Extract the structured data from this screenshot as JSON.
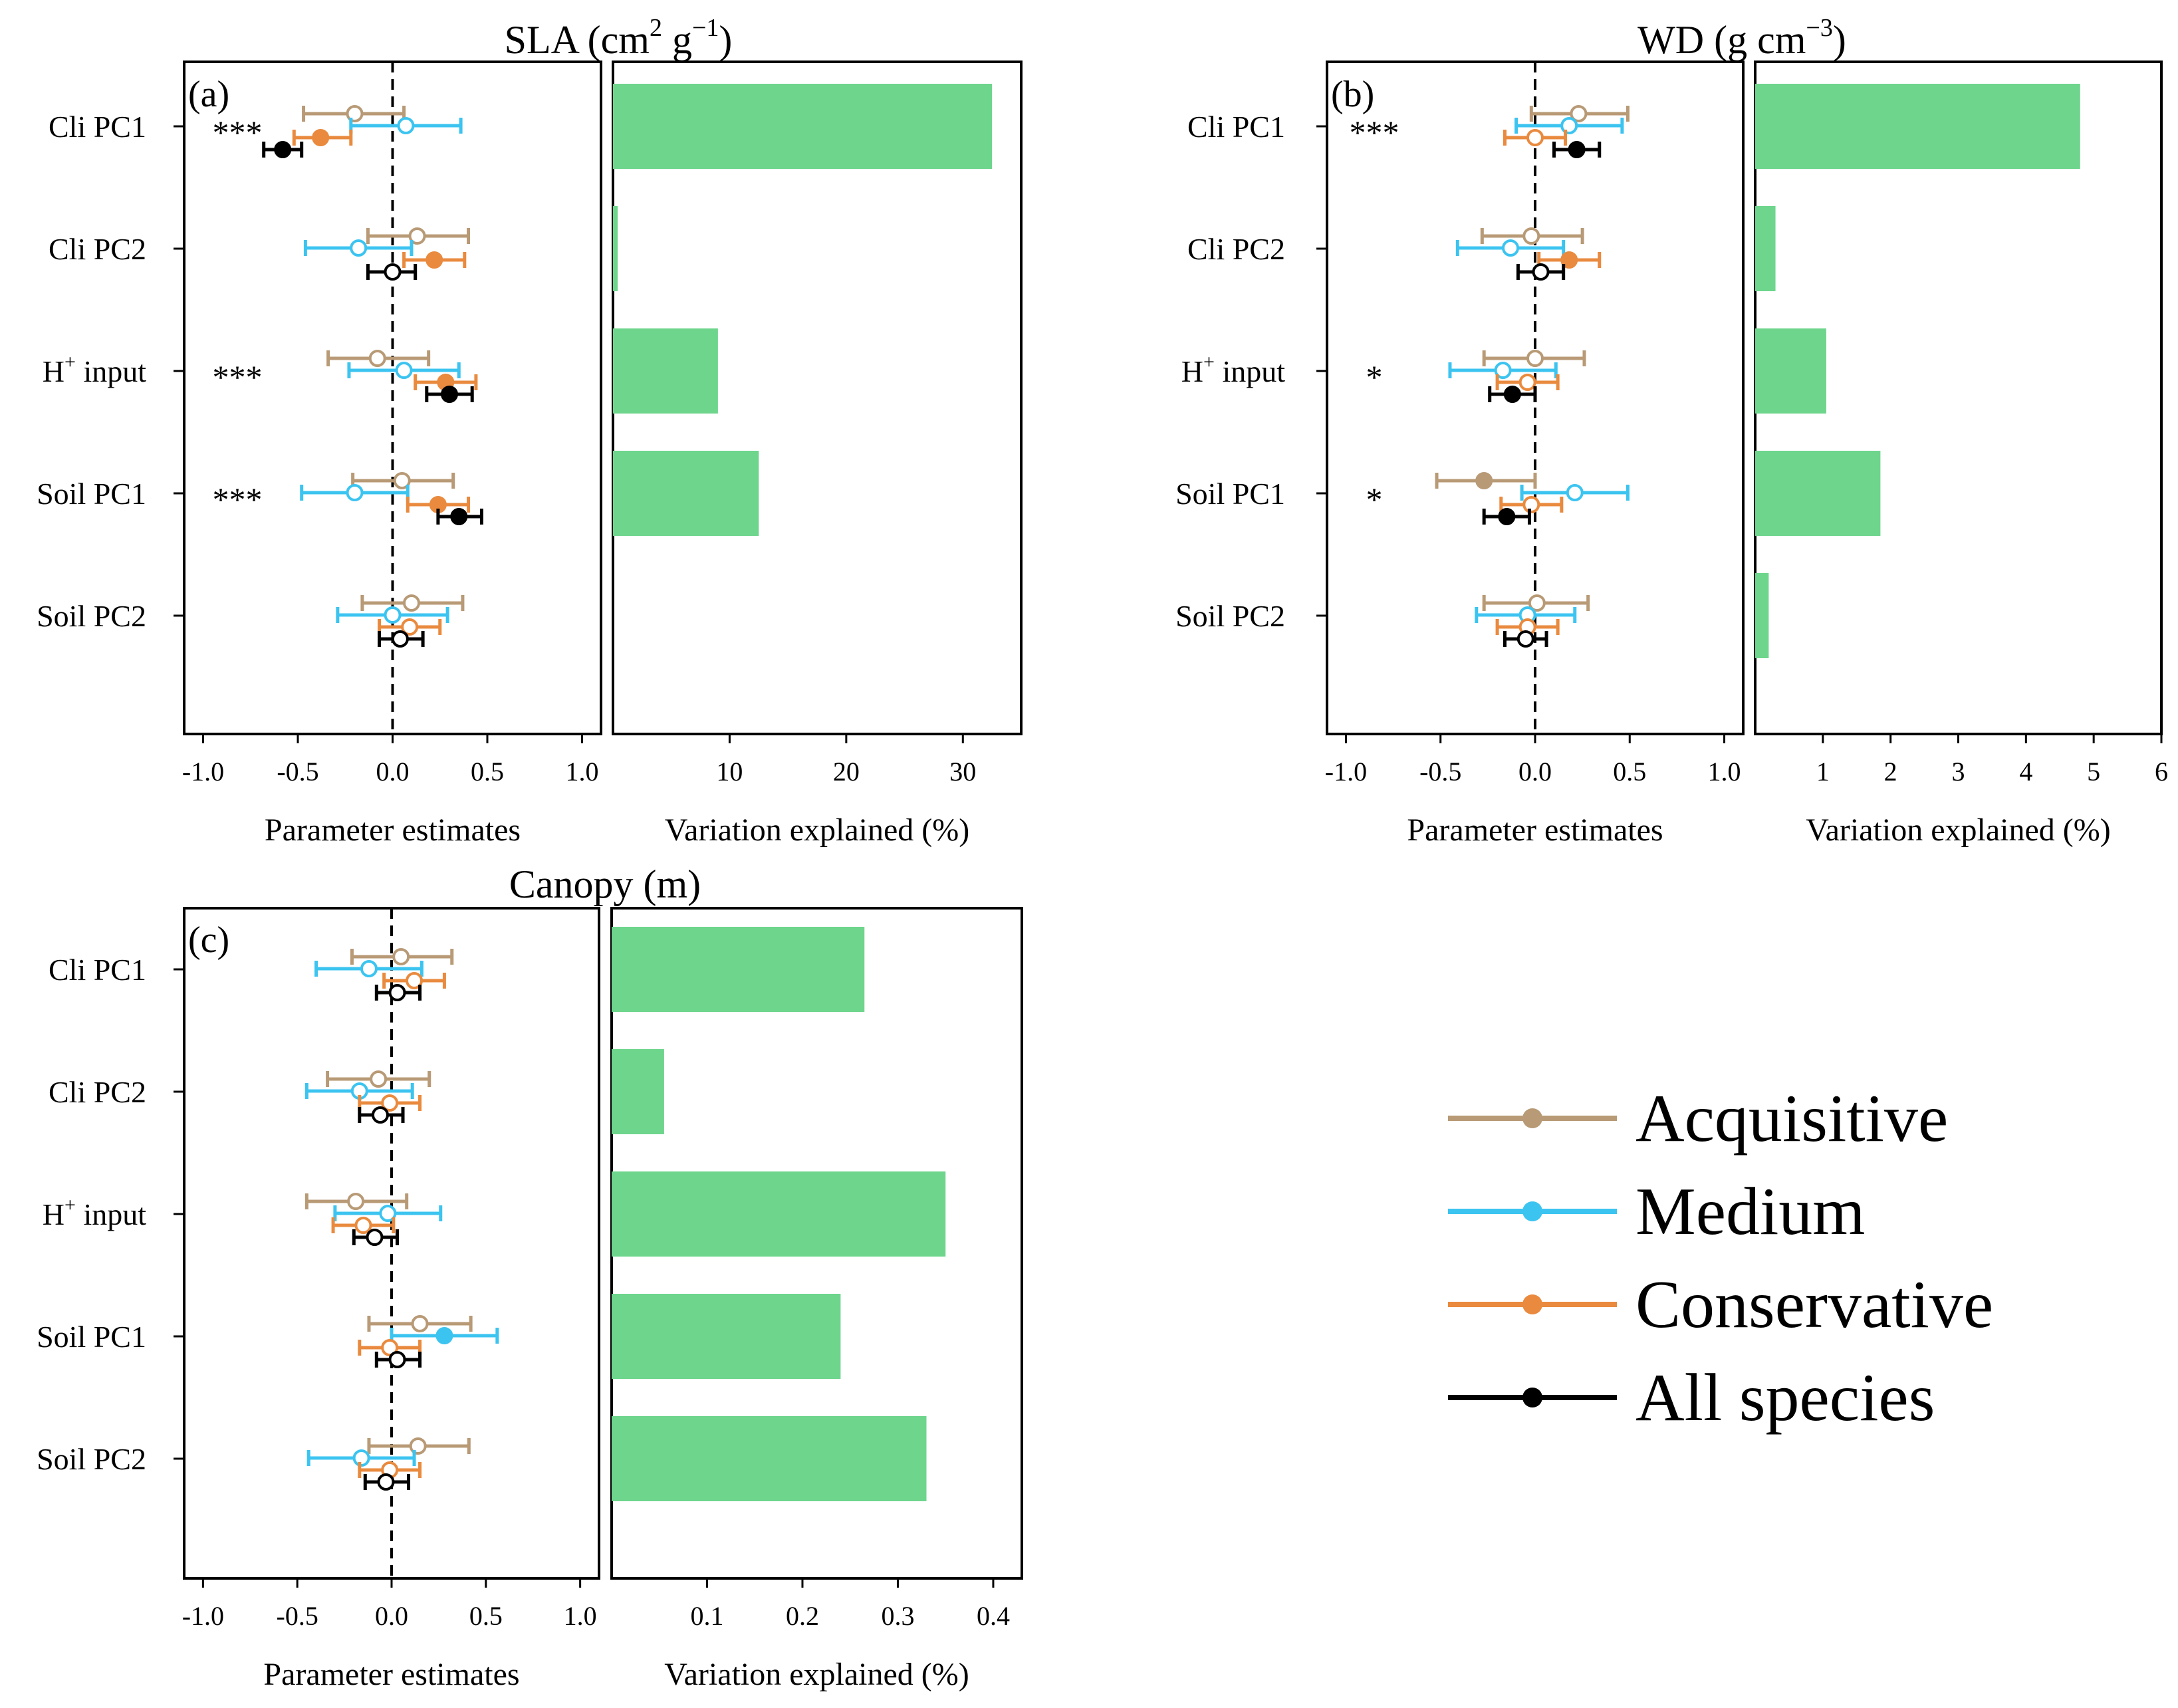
{
  "figure": {
    "legend": {
      "items": [
        {
          "label": "Acquisitive",
          "color": "#b89a76"
        },
        {
          "label": "Medium",
          "color": "#3cc4f0"
        },
        {
          "label": "Conservative",
          "color": "#e98a3e"
        },
        {
          "label": "All species",
          "color": "#000000"
        }
      ]
    }
  },
  "chart_data": [
    {
      "id": "a",
      "type": "forest-plot-with-bar",
      "panel_label": "(a)",
      "title_main": "SLA (cm",
      "title_sup1": "2",
      "title_mid": " g",
      "title_sup2": "−1",
      "title_end": ")",
      "xlabel_left": "Parameter estimates",
      "xlabel_right": "Variation explained (%)",
      "xlim_left": [
        -1.1,
        1.1
      ],
      "xticks_left": [
        "-1.0",
        "-0.5",
        "0.0",
        "0.5",
        "1.0"
      ],
      "xlim_right": [
        0,
        35
      ],
      "xticks_right": [
        "10",
        "20",
        "30"
      ],
      "xtick_values_right": [
        10,
        20,
        30
      ],
      "predictors": [
        {
          "label": "Cli PC1",
          "sup": "",
          "label_rest": "",
          "stars": "***",
          "variation": 32.5,
          "estimates": [
            {
              "group": "Acquisitive",
              "est": -0.2,
              "lo": -0.47,
              "hi": 0.06,
              "filled": false
            },
            {
              "group": "Medium",
              "est": 0.07,
              "lo": -0.22,
              "hi": 0.36,
              "filled": false
            },
            {
              "group": "Conservative",
              "est": -0.38,
              "lo": -0.52,
              "hi": -0.22,
              "filled": true
            },
            {
              "group": "All species",
              "est": -0.58,
              "lo": -0.68,
              "hi": -0.48,
              "filled": true
            }
          ]
        },
        {
          "label": "Cli PC2",
          "sup": "",
          "label_rest": "",
          "stars": "",
          "variation": 0.4,
          "estimates": [
            {
              "group": "Acquisitive",
              "est": 0.13,
              "lo": -0.13,
              "hi": 0.4,
              "filled": false
            },
            {
              "group": "Medium",
              "est": -0.18,
              "lo": -0.46,
              "hi": 0.1,
              "filled": false
            },
            {
              "group": "Conservative",
              "est": 0.22,
              "lo": 0.06,
              "hi": 0.38,
              "filled": true
            },
            {
              "group": "All species",
              "est": 0.0,
              "lo": -0.13,
              "hi": 0.12,
              "filled": false
            }
          ]
        },
        {
          "label": "H",
          "sup": "+",
          "label_rest": " input",
          "stars": "***",
          "variation": 9.0,
          "estimates": [
            {
              "group": "Acquisitive",
              "est": -0.08,
              "lo": -0.34,
              "hi": 0.19,
              "filled": false
            },
            {
              "group": "Medium",
              "est": 0.06,
              "lo": -0.23,
              "hi": 0.35,
              "filled": false
            },
            {
              "group": "Conservative",
              "est": 0.28,
              "lo": 0.12,
              "hi": 0.44,
              "filled": true
            },
            {
              "group": "All species",
              "est": 0.3,
              "lo": 0.18,
              "hi": 0.42,
              "filled": true
            }
          ]
        },
        {
          "label": "Soil PC1",
          "sup": "",
          "label_rest": "",
          "stars": "***",
          "variation": 12.5,
          "estimates": [
            {
              "group": "Acquisitive",
              "est": 0.05,
              "lo": -0.21,
              "hi": 0.32,
              "filled": false
            },
            {
              "group": "Medium",
              "est": -0.2,
              "lo": -0.48,
              "hi": 0.08,
              "filled": false
            },
            {
              "group": "Conservative",
              "est": 0.24,
              "lo": 0.08,
              "hi": 0.4,
              "filled": true
            },
            {
              "group": "All species",
              "est": 0.35,
              "lo": 0.24,
              "hi": 0.47,
              "filled": true
            }
          ]
        },
        {
          "label": "Soil PC2",
          "sup": "",
          "label_rest": "",
          "stars": "",
          "variation": 0.0,
          "estimates": [
            {
              "group": "Acquisitive",
              "est": 0.1,
              "lo": -0.16,
              "hi": 0.37,
              "filled": false
            },
            {
              "group": "Medium",
              "est": 0.0,
              "lo": -0.29,
              "hi": 0.29,
              "filled": false
            },
            {
              "group": "Conservative",
              "est": 0.09,
              "lo": -0.07,
              "hi": 0.25,
              "filled": false
            },
            {
              "group": "All species",
              "est": 0.04,
              "lo": -0.07,
              "hi": 0.16,
              "filled": false
            }
          ]
        }
      ]
    },
    {
      "id": "b",
      "type": "forest-plot-with-bar",
      "panel_label": "(b)",
      "title_main": "WD (g cm",
      "title_sup1": "−3",
      "title_mid": "",
      "title_sup2": "",
      "title_end": ")",
      "xlabel_left": "Parameter estimates",
      "xlabel_right": "Variation explained (%)",
      "xlim_left": [
        -1.1,
        1.1
      ],
      "xticks_left": [
        "-1.0",
        "-0.5",
        "0.0",
        "0.5",
        "1.0"
      ],
      "xlim_right": [
        0,
        6
      ],
      "xticks_right": [
        "1",
        "2",
        "3",
        "4",
        "5",
        "6"
      ],
      "xtick_values_right": [
        1,
        2,
        3,
        4,
        5,
        6
      ],
      "predictors": [
        {
          "label": "Cli PC1",
          "sup": "",
          "label_rest": "",
          "stars": "***",
          "variation": 4.8,
          "estimates": [
            {
              "group": "Acquisitive",
              "est": 0.23,
              "lo": -0.02,
              "hi": 0.49,
              "filled": false
            },
            {
              "group": "Medium",
              "est": 0.18,
              "lo": -0.1,
              "hi": 0.46,
              "filled": false
            },
            {
              "group": "Conservative",
              "est": 0.0,
              "lo": -0.16,
              "hi": 0.16,
              "filled": false
            },
            {
              "group": "All species",
              "est": 0.22,
              "lo": 0.1,
              "hi": 0.34,
              "filled": true
            }
          ]
        },
        {
          "label": "Cli PC2",
          "sup": "",
          "label_rest": "",
          "stars": "",
          "variation": 0.3,
          "estimates": [
            {
              "group": "Acquisitive",
              "est": -0.02,
              "lo": -0.28,
              "hi": 0.25,
              "filled": false
            },
            {
              "group": "Medium",
              "est": -0.13,
              "lo": -0.41,
              "hi": 0.15,
              "filled": false
            },
            {
              "group": "Conservative",
              "est": 0.18,
              "lo": 0.02,
              "hi": 0.34,
              "filled": true
            },
            {
              "group": "All species",
              "est": 0.03,
              "lo": -0.09,
              "hi": 0.15,
              "filled": false
            }
          ]
        },
        {
          "label": "H",
          "sup": "+",
          "label_rest": " input",
          "stars": "*",
          "variation": 1.05,
          "estimates": [
            {
              "group": "Acquisitive",
              "est": 0.0,
              "lo": -0.27,
              "hi": 0.26,
              "filled": false
            },
            {
              "group": "Medium",
              "est": -0.17,
              "lo": -0.45,
              "hi": 0.11,
              "filled": false
            },
            {
              "group": "Conservative",
              "est": -0.04,
              "lo": -0.2,
              "hi": 0.12,
              "filled": false
            },
            {
              "group": "All species",
              "est": -0.12,
              "lo": -0.24,
              "hi": 0.0,
              "filled": true
            }
          ]
        },
        {
          "label": "Soil  PC1",
          "sup": "",
          "label_rest": "",
          "stars": "*",
          "variation": 1.85,
          "estimates": [
            {
              "group": "Acquisitive",
              "est": -0.27,
              "lo": -0.52,
              "hi": 0.0,
              "filled": true
            },
            {
              "group": "Medium",
              "est": 0.21,
              "lo": -0.07,
              "hi": 0.49,
              "filled": false
            },
            {
              "group": "Conservative",
              "est": -0.02,
              "lo": -0.18,
              "hi": 0.14,
              "filled": false
            },
            {
              "group": "All species",
              "est": -0.15,
              "lo": -0.27,
              "hi": -0.03,
              "filled": true
            }
          ]
        },
        {
          "label": "Soil PC2",
          "sup": "",
          "label_rest": "",
          "stars": "",
          "variation": 0.2,
          "estimates": [
            {
              "group": "Acquisitive",
              "est": 0.01,
              "lo": -0.27,
              "hi": 0.28,
              "filled": false
            },
            {
              "group": "Medium",
              "est": -0.04,
              "lo": -0.31,
              "hi": 0.21,
              "filled": false
            },
            {
              "group": "Conservative",
              "est": -0.04,
              "lo": -0.2,
              "hi": 0.12,
              "filled": false
            },
            {
              "group": "All species",
              "est": -0.05,
              "lo": -0.16,
              "hi": 0.06,
              "filled": false
            }
          ]
        }
      ]
    },
    {
      "id": "c",
      "type": "forest-plot-with-bar",
      "panel_label": "(c)",
      "title_main": "Canopy (m)",
      "title_sup1": "",
      "title_mid": "",
      "title_sup2": "",
      "title_end": "",
      "xlabel_left": "Parameter estimates",
      "xlabel_right": "Variation explained (%)",
      "xlim_left": [
        -1.1,
        1.1
      ],
      "xticks_left": [
        "-1.0",
        "-0.5",
        "0.0",
        "0.5",
        "1.0"
      ],
      "xlim_right": [
        0,
        0.43
      ],
      "xticks_right": [
        "0.1",
        "0.2",
        "0.3",
        "0.4"
      ],
      "xtick_values_right": [
        0.1,
        0.2,
        0.3,
        0.4
      ],
      "predictors": [
        {
          "label": "Cli PC1",
          "sup": "",
          "label_rest": "",
          "stars": "",
          "variation": 0.265,
          "estimates": [
            {
              "group": "Acquisitive",
              "est": 0.05,
              "lo": -0.21,
              "hi": 0.32,
              "filled": false
            },
            {
              "group": "Medium",
              "est": -0.12,
              "lo": -0.4,
              "hi": 0.16,
              "filled": false
            },
            {
              "group": "Conservative",
              "est": 0.12,
              "lo": -0.04,
              "hi": 0.28,
              "filled": false
            },
            {
              "group": "All species",
              "est": 0.03,
              "lo": -0.08,
              "hi": 0.15,
              "filled": false
            }
          ]
        },
        {
          "label": "Cli PC2",
          "sup": "",
          "label_rest": "",
          "stars": "",
          "variation": 0.055,
          "estimates": [
            {
              "group": "Acquisitive",
              "est": -0.07,
              "lo": -0.34,
              "hi": 0.2,
              "filled": false
            },
            {
              "group": "Medium",
              "est": -0.17,
              "lo": -0.45,
              "hi": 0.11,
              "filled": false
            },
            {
              "group": "Conservative",
              "est": -0.01,
              "lo": -0.17,
              "hi": 0.15,
              "filled": false
            },
            {
              "group": "All species",
              "est": -0.06,
              "lo": -0.17,
              "hi": 0.06,
              "filled": false
            }
          ]
        },
        {
          "label": "H",
          "sup": "+",
          "label_rest": " input",
          "stars": "",
          "variation": 0.35,
          "estimates": [
            {
              "group": "Acquisitive",
              "est": -0.19,
              "lo": -0.45,
              "hi": 0.08,
              "filled": false
            },
            {
              "group": "Medium",
              "est": -0.02,
              "lo": -0.3,
              "hi": 0.26,
              "filled": false
            },
            {
              "group": "Conservative",
              "est": -0.15,
              "lo": -0.31,
              "hi": 0.01,
              "filled": false
            },
            {
              "group": "All species",
              "est": -0.09,
              "lo": -0.2,
              "hi": 0.03,
              "filled": false
            }
          ]
        },
        {
          "label": "Soil PC1",
          "sup": "",
          "label_rest": "",
          "stars": "",
          "variation": 0.24,
          "estimates": [
            {
              "group": "Acquisitive",
              "est": 0.15,
              "lo": -0.12,
              "hi": 0.42,
              "filled": false
            },
            {
              "group": "Medium",
              "est": 0.28,
              "lo": 0.0,
              "hi": 0.56,
              "filled": true
            },
            {
              "group": "Conservative",
              "est": -0.01,
              "lo": -0.17,
              "hi": 0.15,
              "filled": false
            },
            {
              "group": "All species",
              "est": 0.03,
              "lo": -0.08,
              "hi": 0.15,
              "filled": false
            }
          ]
        },
        {
          "label": "Soil PC2",
          "sup": "",
          "label_rest": "",
          "stars": "",
          "variation": 0.33,
          "estimates": [
            {
              "group": "Acquisitive",
              "est": 0.14,
              "lo": -0.12,
              "hi": 0.41,
              "filled": false
            },
            {
              "group": "Medium",
              "est": -0.16,
              "lo": -0.44,
              "hi": 0.12,
              "filled": false
            },
            {
              "group": "Conservative",
              "est": -0.01,
              "lo": -0.17,
              "hi": 0.15,
              "filled": false
            },
            {
              "group": "All species",
              "est": -0.03,
              "lo": -0.14,
              "hi": 0.09,
              "filled": false
            }
          ]
        }
      ]
    }
  ]
}
